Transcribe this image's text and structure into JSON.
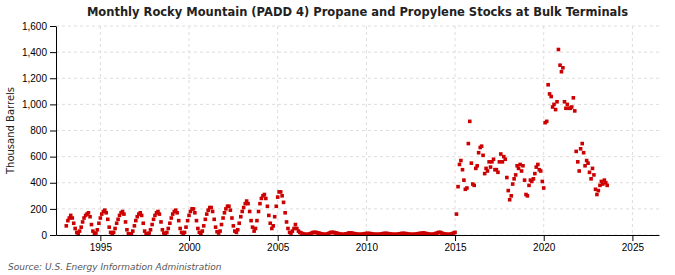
{
  "chart_data": {
    "type": "scatter",
    "title": "Monthly Rocky Mountain (PADD 4) Propane and Propylene Stocks at Bulk Terminals",
    "y_label": "Thousand Barrels",
    "annotations": [
      "Source: U.S. Energy Information Administration"
    ],
    "color": "#cc0000",
    "marker": "square",
    "grid": true,
    "xlim": [
      1992.5,
      2026.5
    ],
    "ylim": [
      0,
      1600
    ],
    "xticks": [
      1995,
      2000,
      2005,
      2010,
      2015,
      2020,
      2025
    ],
    "yticks": [
      0,
      200,
      400,
      600,
      800,
      {
        "value": 1000,
        "label": "1,000"
      },
      {
        "value": 1200,
        "label": "1,200"
      },
      {
        "value": 1400,
        "label": "1,400"
      },
      {
        "value": 1600,
        "label": "1,600"
      }
    ],
    "x": [
      1993.08,
      1993.17,
      1993.25,
      1993.33,
      1993.42,
      1993.5,
      1993.58,
      1993.67,
      1993.75,
      1993.83,
      1993.92,
      1994,
      1994.08,
      1994.17,
      1994.25,
      1994.33,
      1994.42,
      1994.5,
      1994.58,
      1994.67,
      1994.75,
      1994.83,
      1994.92,
      1995,
      1995.08,
      1995.17,
      1995.25,
      1995.33,
      1995.42,
      1995.5,
      1995.58,
      1995.67,
      1995.75,
      1995.83,
      1995.92,
      1996,
      1996.08,
      1996.17,
      1996.25,
      1996.33,
      1996.42,
      1996.5,
      1996.58,
      1996.67,
      1996.75,
      1996.83,
      1996.92,
      1997,
      1997.08,
      1997.17,
      1997.25,
      1997.33,
      1997.42,
      1997.5,
      1997.58,
      1997.67,
      1997.75,
      1997.83,
      1997.92,
      1998,
      1998.08,
      1998.17,
      1998.25,
      1998.33,
      1998.42,
      1998.5,
      1998.58,
      1998.67,
      1998.75,
      1998.83,
      1998.92,
      1999,
      1999.08,
      1999.17,
      1999.25,
      1999.33,
      1999.42,
      1999.5,
      1999.58,
      1999.67,
      1999.75,
      1999.83,
      1999.92,
      2000,
      2000.08,
      2000.17,
      2000.25,
      2000.33,
      2000.42,
      2000.5,
      2000.58,
      2000.67,
      2000.75,
      2000.83,
      2000.92,
      2001,
      2001.08,
      2001.17,
      2001.25,
      2001.33,
      2001.42,
      2001.5,
      2001.58,
      2001.67,
      2001.75,
      2001.83,
      2001.92,
      2002,
      2002.08,
      2002.17,
      2002.25,
      2002.33,
      2002.42,
      2002.5,
      2002.58,
      2002.67,
      2002.75,
      2002.83,
      2002.92,
      2003,
      2003.08,
      2003.17,
      2003.25,
      2003.33,
      2003.42,
      2003.5,
      2003.58,
      2003.67,
      2003.75,
      2003.83,
      2003.92,
      2004,
      2004.08,
      2004.17,
      2004.25,
      2004.33,
      2004.42,
      2004.5,
      2004.58,
      2004.67,
      2004.75,
      2004.83,
      2004.92,
      2005,
      2005.08,
      2005.17,
      2005.25,
      2005.33,
      2005.42,
      2005.5,
      2005.58,
      2005.67,
      2005.75,
      2005.83,
      2005.92,
      2006,
      2006.08,
      2006.17,
      2006.25,
      2006.33,
      2006.42,
      2006.5,
      2006.58,
      2006.67,
      2006.75,
      2006.83,
      2006.92,
      2007,
      2007.08,
      2007.17,
      2007.25,
      2007.33,
      2007.42,
      2007.5,
      2007.58,
      2007.67,
      2007.75,
      2007.83,
      2007.92,
      2008,
      2008.08,
      2008.17,
      2008.25,
      2008.33,
      2008.42,
      2008.5,
      2008.58,
      2008.67,
      2008.75,
      2008.83,
      2008.92,
      2009,
      2009.08,
      2009.17,
      2009.25,
      2009.33,
      2009.42,
      2009.5,
      2009.58,
      2009.67,
      2009.75,
      2009.83,
      2009.92,
      2010,
      2010.08,
      2010.17,
      2010.25,
      2010.33,
      2010.42,
      2010.5,
      2010.58,
      2010.67,
      2010.75,
      2010.83,
      2010.92,
      2011,
      2011.08,
      2011.17,
      2011.25,
      2011.33,
      2011.42,
      2011.5,
      2011.58,
      2011.67,
      2011.75,
      2011.83,
      2011.92,
      2012,
      2012.08,
      2012.17,
      2012.25,
      2012.33,
      2012.42,
      2012.5,
      2012.58,
      2012.67,
      2012.75,
      2012.83,
      2012.92,
      2013,
      2013.08,
      2013.17,
      2013.25,
      2013.33,
      2013.42,
      2013.5,
      2013.58,
      2013.67,
      2013.75,
      2013.83,
      2013.92,
      2014,
      2014.08,
      2014.17,
      2014.25,
      2014.33,
      2014.42,
      2014.5,
      2014.58,
      2014.67,
      2014.75,
      2014.83,
      2014.92,
      2015,
      2015.08,
      2015.17,
      2015.25,
      2015.33,
      2015.42,
      2015.5,
      2015.58,
      2015.67,
      2015.75,
      2015.83,
      2015.92,
      2016,
      2016.08,
      2016.17,
      2016.25,
      2016.33,
      2016.42,
      2016.5,
      2016.58,
      2016.67,
      2016.75,
      2016.83,
      2016.92,
      2017,
      2017.08,
      2017.17,
      2017.25,
      2017.33,
      2017.42,
      2017.5,
      2017.58,
      2017.67,
      2017.75,
      2017.83,
      2017.92,
      2018,
      2018.08,
      2018.17,
      2018.25,
      2018.33,
      2018.42,
      2018.5,
      2018.58,
      2018.67,
      2018.75,
      2018.83,
      2018.92,
      2019,
      2019.08,
      2019.17,
      2019.25,
      2019.33,
      2019.42,
      2019.5,
      2019.58,
      2019.67,
      2019.75,
      2019.83,
      2019.92,
      2020,
      2020.08,
      2020.17,
      2020.25,
      2020.33,
      2020.42,
      2020.5,
      2020.58,
      2020.67,
      2020.75,
      2020.83,
      2020.92,
      2021,
      2021.08,
      2021.17,
      2021.25,
      2021.33,
      2021.42,
      2021.5,
      2021.58,
      2021.67,
      2021.75,
      2021.83,
      2021.92,
      2022,
      2022.08,
      2022.17,
      2022.25,
      2022.33,
      2022.42,
      2022.5,
      2022.58,
      2022.67,
      2022.75,
      2022.83,
      2022.92,
      2023,
      2023.08,
      2023.17,
      2023.25,
      2023.33,
      2023.42,
      2023.5,
      2023.58
    ],
    "values": [
      70,
      110,
      130,
      150,
      130,
      90,
      50,
      20,
      10,
      30,
      60,
      100,
      130,
      150,
      160,
      170,
      140,
      80,
      30,
      10,
      15,
      40,
      90,
      130,
      160,
      180,
      190,
      170,
      120,
      60,
      20,
      10,
      20,
      50,
      90,
      120,
      150,
      170,
      180,
      160,
      100,
      40,
      10,
      5,
      10,
      30,
      70,
      110,
      140,
      160,
      170,
      150,
      90,
      30,
      10,
      5,
      15,
      40,
      80,
      120,
      150,
      170,
      180,
      160,
      100,
      40,
      15,
      10,
      20,
      50,
      90,
      130,
      160,
      180,
      190,
      170,
      110,
      50,
      20,
      10,
      20,
      60,
      110,
      150,
      180,
      200,
      200,
      170,
      110,
      50,
      20,
      10,
      30,
      70,
      120,
      160,
      190,
      210,
      210,
      180,
      120,
      60,
      25,
      15,
      30,
      80,
      130,
      170,
      200,
      220,
      220,
      190,
      130,
      70,
      30,
      20,
      40,
      90,
      140,
      180,
      210,
      240,
      260,
      240,
      180,
      110,
      60,
      30,
      50,
      110,
      180,
      240,
      280,
      300,
      310,
      280,
      220,
      150,
      90,
      50,
      70,
      140,
      220,
      290,
      330,
      330,
      300,
      250,
      170,
      100,
      50,
      20,
      15,
      30,
      50,
      80,
      50,
      30,
      20,
      15,
      10,
      5,
      5,
      5,
      5,
      10,
      15,
      20,
      20,
      20,
      15,
      15,
      10,
      8,
      5,
      5,
      5,
      10,
      15,
      20,
      20,
      20,
      15,
      15,
      10,
      8,
      5,
      5,
      5,
      8,
      10,
      15,
      15,
      15,
      12,
      10,
      8,
      5,
      5,
      5,
      5,
      8,
      10,
      12,
      12,
      12,
      10,
      8,
      6,
      5,
      5,
      5,
      5,
      8,
      10,
      12,
      12,
      12,
      10,
      8,
      6,
      5,
      5,
      5,
      5,
      8,
      10,
      12,
      12,
      12,
      10,
      8,
      6,
      5,
      5,
      5,
      5,
      8,
      10,
      12,
      12,
      15,
      15,
      12,
      10,
      8,
      5,
      5,
      5,
      8,
      12,
      15,
      20,
      20,
      15,
      10,
      8,
      5,
      5,
      5,
      5,
      10,
      15,
      20,
      160,
      370,
      540,
      570,
      500,
      420,
      350,
      360,
      700,
      870,
      550,
      390,
      380,
      510,
      530,
      630,
      670,
      680,
      610,
      470,
      510,
      490,
      560,
      520,
      560,
      580,
      500,
      500,
      480,
      560,
      620,
      560,
      600,
      580,
      440,
      340,
      270,
      300,
      390,
      430,
      460,
      530,
      510,
      540,
      490,
      530,
      420,
      310,
      300,
      380,
      420,
      410,
      430,
      470,
      520,
      540,
      500,
      490,
      410,
      360,
      860,
      870,
      1150,
      1080,
      1060,
      980,
      1000,
      960,
      1020,
      1420,
      1300,
      1250,
      1280,
      1020,
      970,
      1000,
      970,
      970,
      980,
      1050,
      950,
      640,
      560,
      490,
      660,
      700,
      630,
      530,
      570,
      550,
      480,
      430,
      510,
      460,
      350,
      310,
      340,
      380,
      410,
      390,
      420,
      400,
      380
    ]
  }
}
